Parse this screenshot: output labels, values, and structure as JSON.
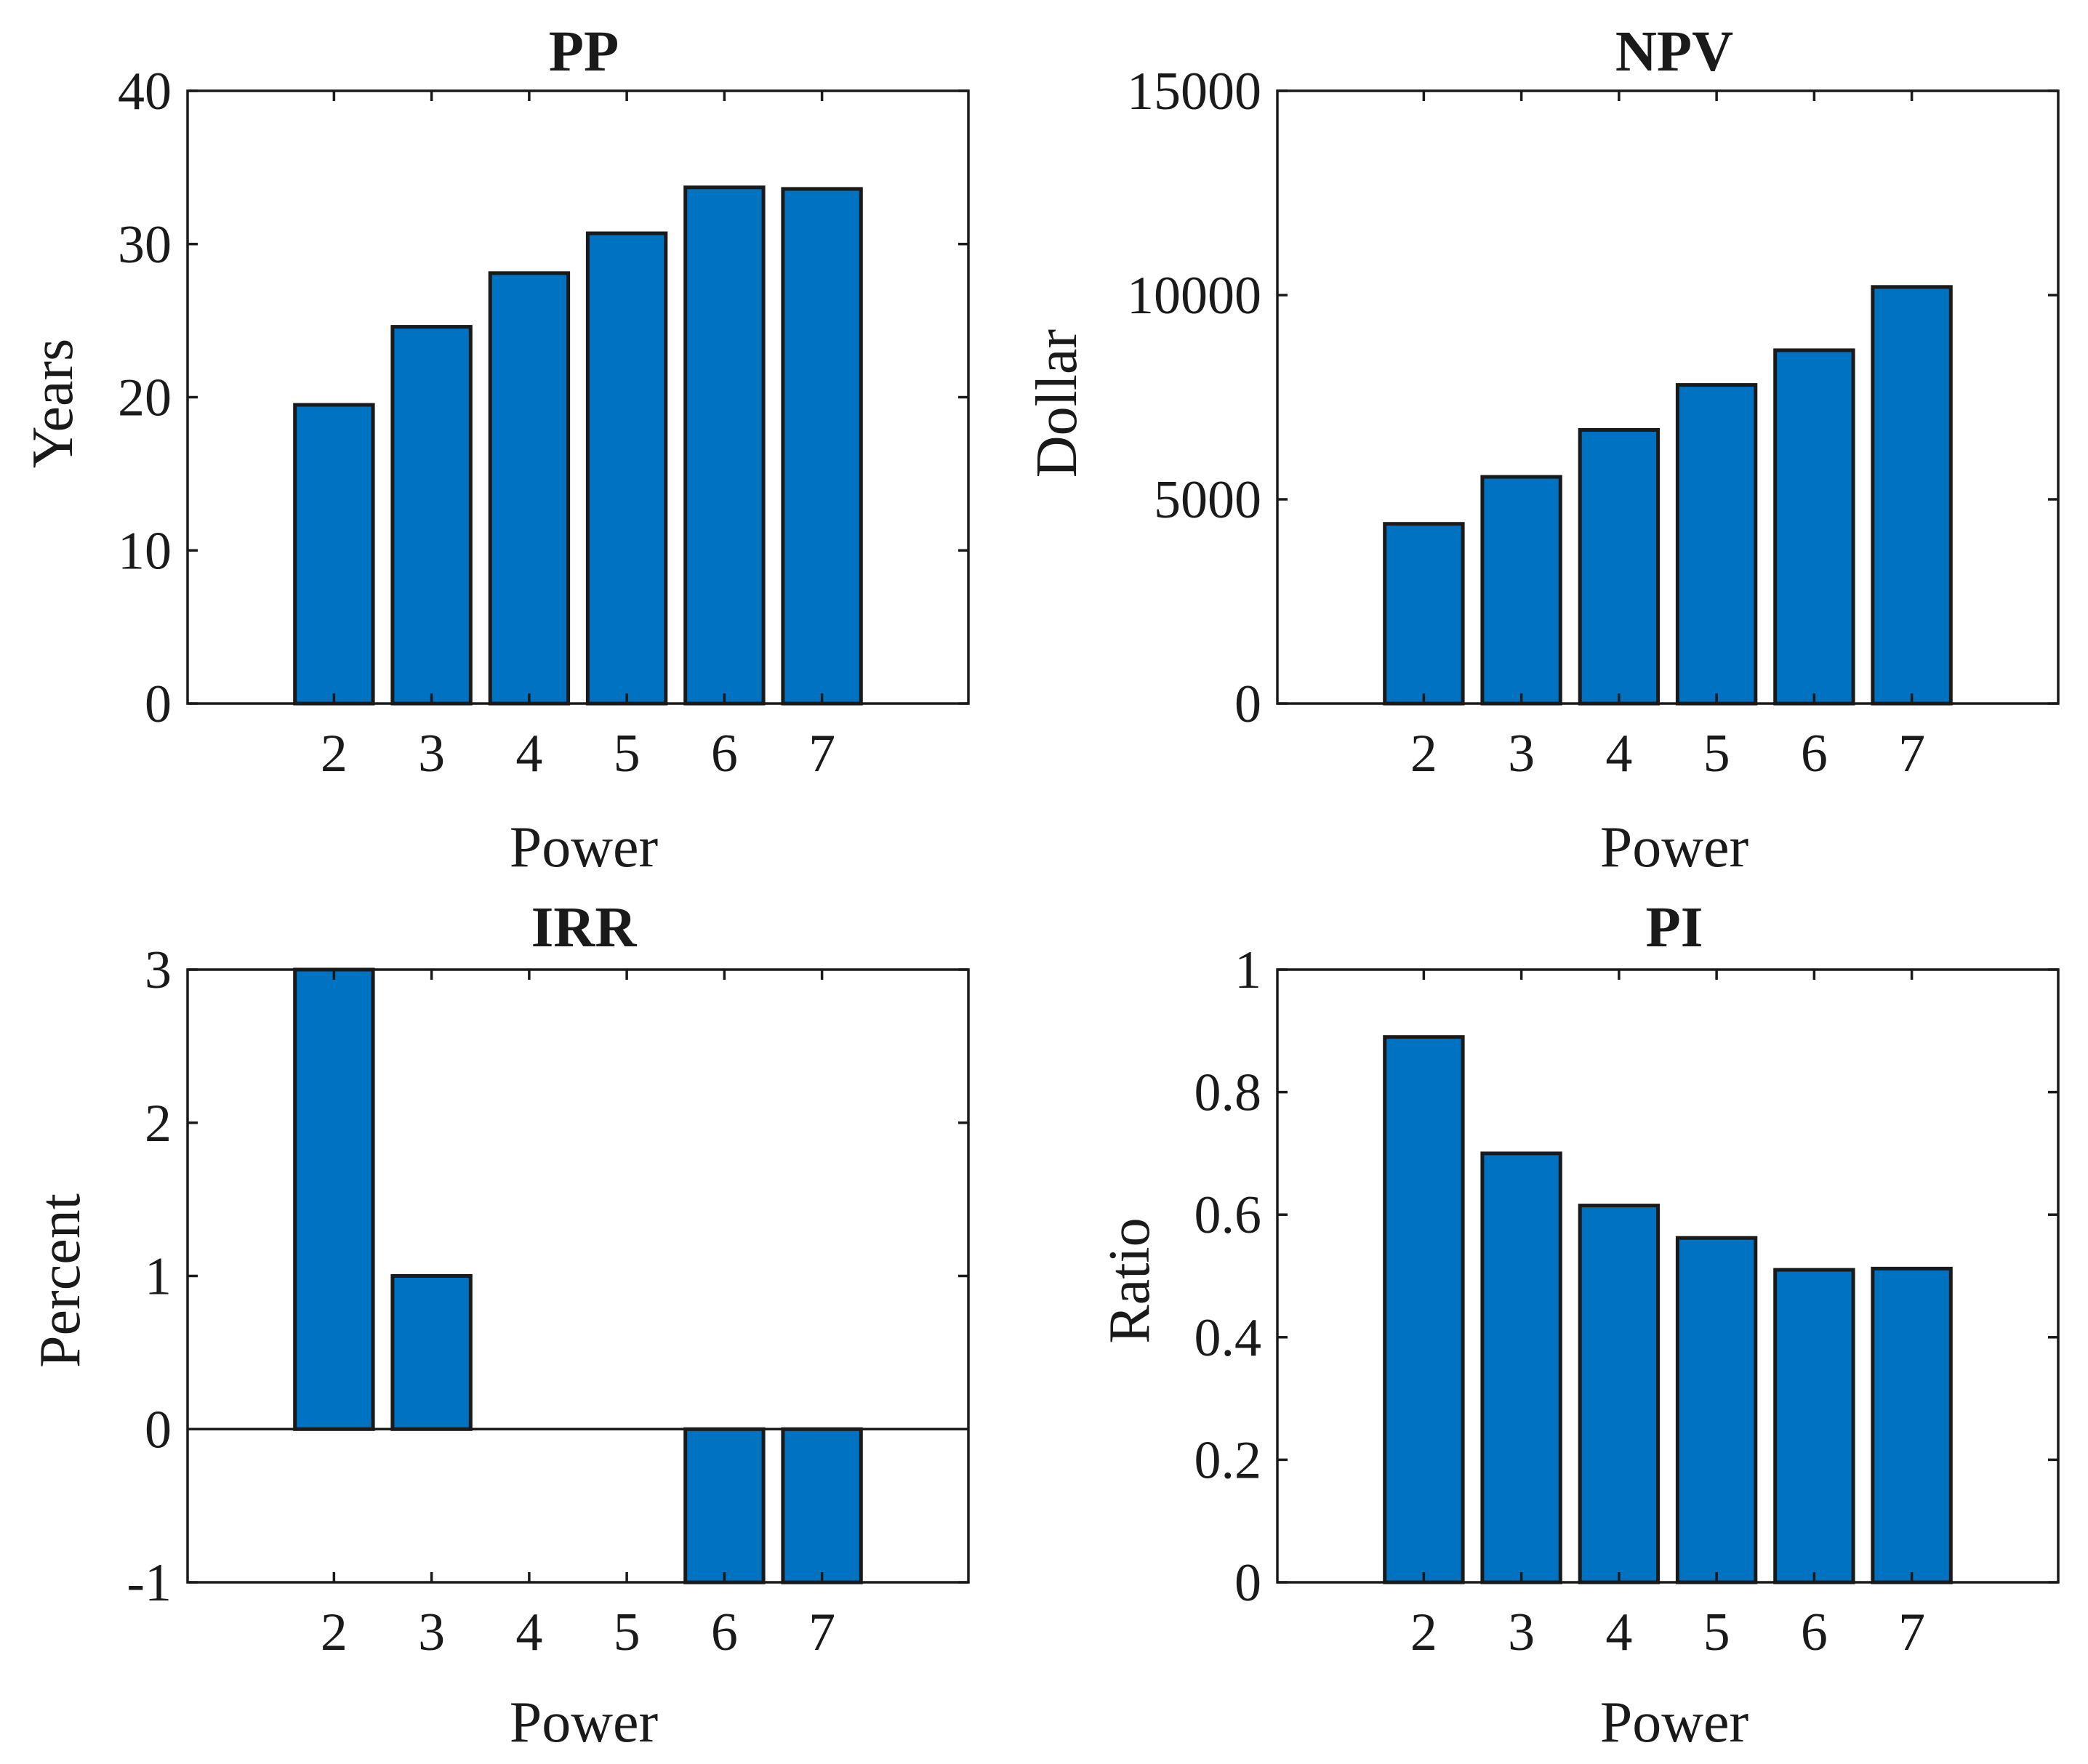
{
  "colors": {
    "bar": "#0072C2",
    "axis": "#1a1a1a",
    "background": "#ffffff"
  },
  "chart_data": [
    {
      "type": "bar",
      "title": "PP",
      "xlabel": "Power",
      "ylabel": "Years",
      "categories": [
        "2",
        "3",
        "4",
        "5",
        "6",
        "7"
      ],
      "values": [
        19.5,
        24.6,
        28.1,
        30.7,
        33.7,
        33.6
      ],
      "ylim": [
        0,
        40
      ],
      "yticks": [
        0,
        10,
        20,
        30,
        40
      ],
      "ytick_labels": [
        "0",
        "10",
        "20",
        "30",
        "40"
      ],
      "grid": false
    },
    {
      "type": "bar",
      "title": "NPV",
      "xlabel": "Power",
      "ylabel": "Dollar",
      "categories": [
        "2",
        "3",
        "4",
        "5",
        "6",
        "7"
      ],
      "values": [
        4400,
        5550,
        6700,
        7800,
        8650,
        10200
      ],
      "ylim": [
        0,
        15000
      ],
      "yticks": [
        0,
        5000,
        10000,
        15000
      ],
      "ytick_labels": [
        "0",
        "5000",
        "10000",
        "15000"
      ],
      "grid": false
    },
    {
      "type": "bar",
      "title": "IRR",
      "xlabel": "Power",
      "ylabel": "Percent",
      "categories": [
        "2",
        "3",
        "4",
        "5",
        "6",
        "7"
      ],
      "values": [
        3.0,
        1.0,
        0,
        0,
        -1.0,
        -1.0
      ],
      "ylim": [
        -1,
        3
      ],
      "yticks": [
        -1,
        0,
        1,
        2,
        3
      ],
      "ytick_labels": [
        "-1",
        "0",
        "1",
        "2",
        "3"
      ],
      "grid": false
    },
    {
      "type": "bar",
      "title": "PI",
      "xlabel": "Power",
      "ylabel": "Ratio",
      "categories": [
        "2",
        "3",
        "4",
        "5",
        "6",
        "7"
      ],
      "values": [
        0.89,
        0.7,
        0.615,
        0.562,
        0.51,
        0.512
      ],
      "ylim": [
        0,
        1
      ],
      "yticks": [
        0,
        0.2,
        0.4,
        0.6,
        0.8,
        1
      ],
      "ytick_labels": [
        "0",
        "0.2",
        "0.4",
        "0.6",
        "0.8",
        "1"
      ],
      "grid": false
    }
  ]
}
